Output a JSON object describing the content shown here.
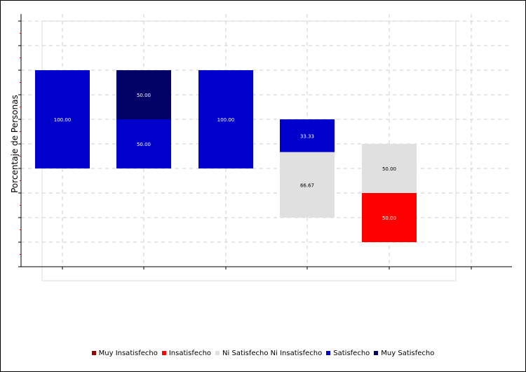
{
  "chart_data": {
    "type": "bar",
    "stacked": true,
    "ylabel": "Porcentaje de Personas",
    "categories": [
      "",
      "",
      "",
      "",
      ""
    ],
    "series": [
      {
        "name": "Muy Insatisfecho",
        "color": "#990000",
        "values": [
          0,
          0,
          0,
          0,
          0
        ]
      },
      {
        "name": "Insatisfecho",
        "color": "#ff0000",
        "values": [
          0,
          0,
          0,
          0,
          50.0
        ]
      },
      {
        "name": "Ni Satisfecho Ni Insatisfecho",
        "color": "#e0e0e0",
        "values": [
          0,
          0,
          0,
          66.67,
          50.0
        ]
      },
      {
        "name": "Satisfecho",
        "color": "#0000cc",
        "values": [
          100.0,
          50.0,
          100.0,
          33.33,
          0
        ]
      },
      {
        "name": "Muy Satisfecho",
        "color": "#000066",
        "values": [
          0,
          50.0,
          0,
          0,
          0
        ]
      }
    ],
    "data_labels": [
      [
        "",
        "",
        "",
        "",
        ""
      ],
      [
        "",
        "",
        "",
        "",
        "50.00"
      ],
      [
        "",
        "",
        "",
        "66.67",
        "50.00"
      ],
      [
        "100.00",
        "50.00",
        "100.00",
        "33.33",
        ""
      ],
      [
        "",
        "50.00",
        "",
        "",
        ""
      ]
    ],
    "legend_position": "bottom",
    "grid": true
  }
}
